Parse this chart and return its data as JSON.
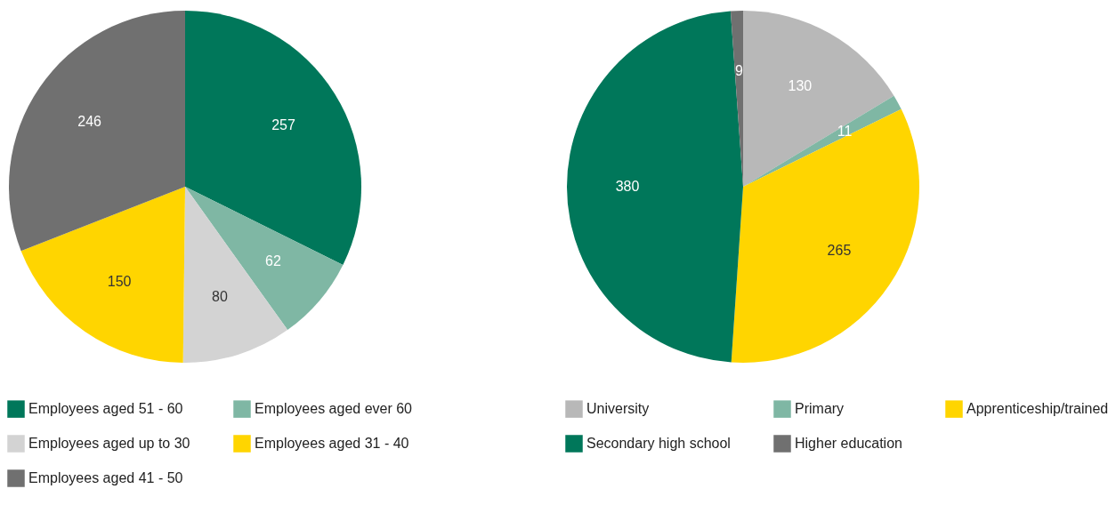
{
  "chart_data": [
    {
      "type": "pie",
      "categories": [
        "Employees aged 51 - 60",
        "Employees aged ever 60",
        "Employees aged up to 30",
        "Employees aged 31 - 40",
        "Employees aged 41 - 50"
      ],
      "values": [
        257,
        62,
        80,
        150,
        246
      ],
      "colors": [
        "#00775a",
        "#7fb7a4",
        "#d3d3d3",
        "#ffd500",
        "#707070"
      ],
      "data_labels": true,
      "legend": "bottom"
    },
    {
      "type": "pie",
      "categories": [
        "University",
        "Primary",
        "Apprenticeship/trained",
        "Secondary high school",
        "Higher education"
      ],
      "values": [
        130,
        11,
        265,
        380,
        9
      ],
      "colors": [
        "#b8b8b8",
        "#7fb7a4",
        "#ffd500",
        "#00775a",
        "#707070"
      ],
      "data_labels": true,
      "legend": "bottom"
    }
  ]
}
